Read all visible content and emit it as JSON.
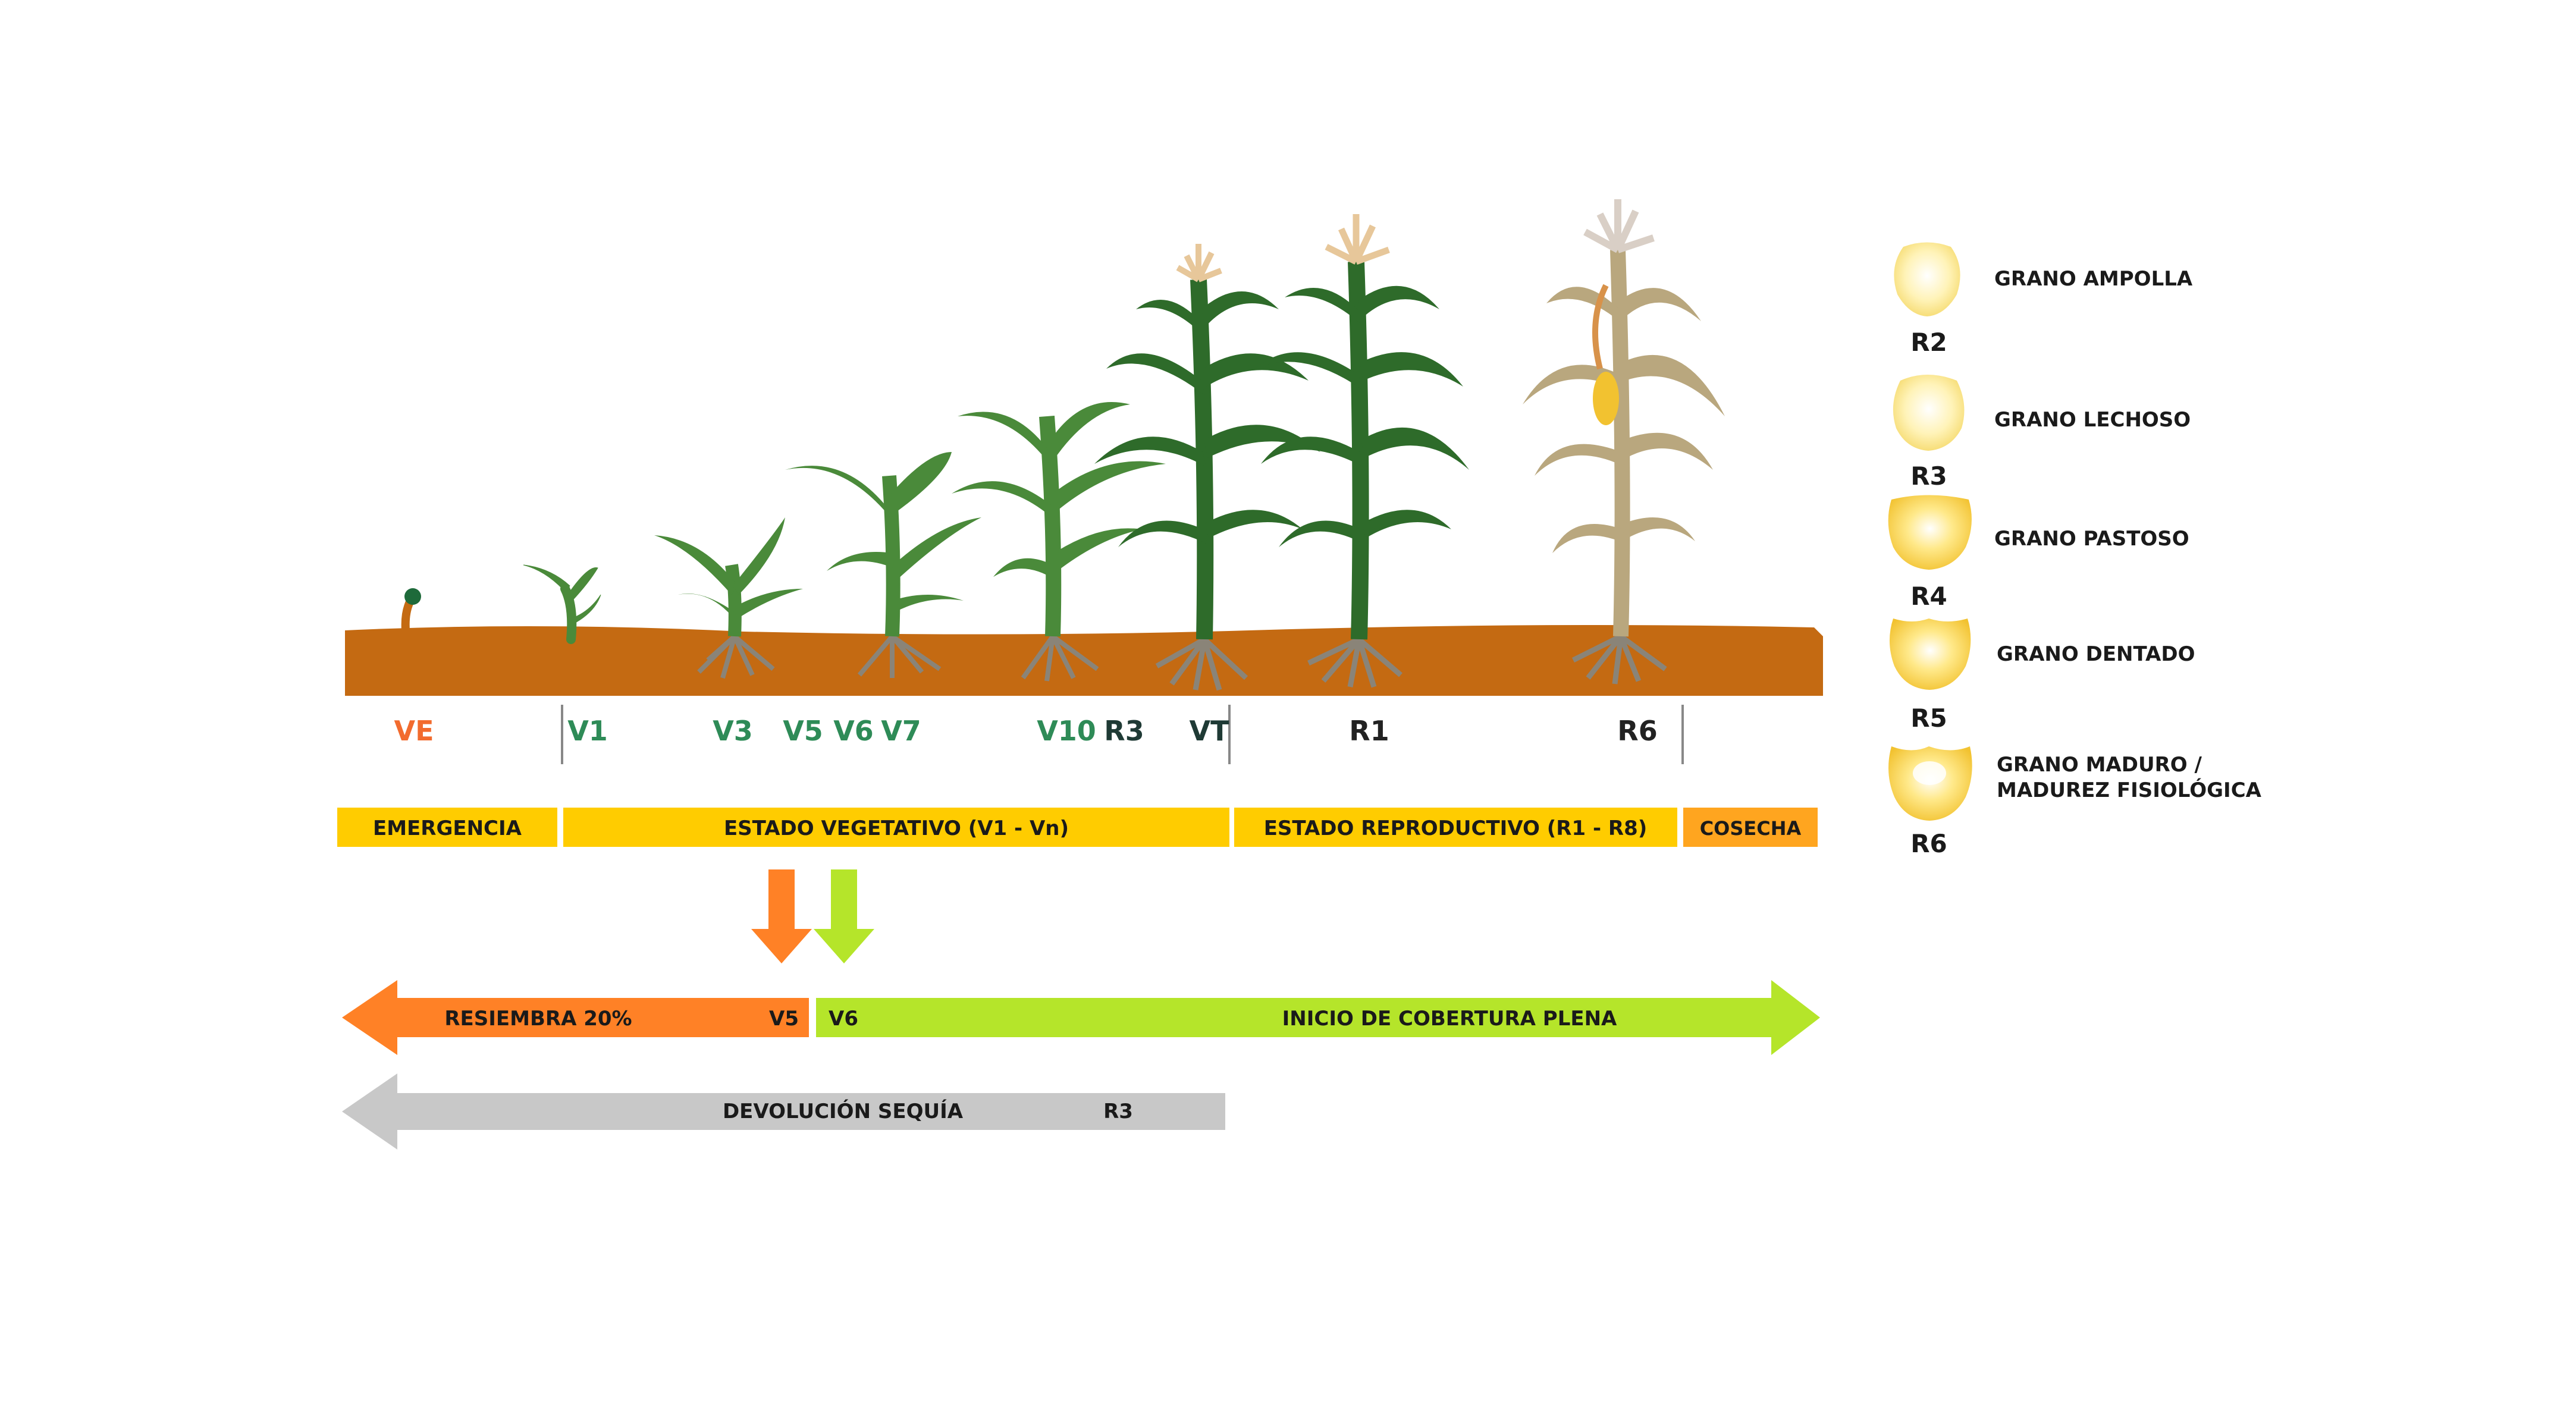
{
  "colors": {
    "soil": "#c46a12",
    "plant_dark": "#2e6b2a",
    "plant_mid": "#4a8a3a",
    "plant_dry": "#b9a77e",
    "root": "#8a8478",
    "tassel": "#e7c79a",
    "stage_orange": "#f26b2e",
    "stage_green": "#2e8b57",
    "stage_dark": "#1f3a35",
    "phase_yellow": "#ffcc00",
    "phase_orange": "#ffa51f",
    "arrow_orange": "#ff8126",
    "arrow_lime": "#b5e52a",
    "arrow_gray": "#c8c8c8",
    "kernel_yellow": "#ffe680"
  },
  "stages": {
    "ve": "VE",
    "v1": "V1",
    "v3": "V3",
    "v5": "V5",
    "v6": "V6",
    "v7": "V7",
    "v10": "V10",
    "r3": "R3",
    "vt": "VT",
    "r1": "R1",
    "r6": "R6"
  },
  "phases": {
    "emergencia": "EMERGENCIA",
    "vegetativo": "ESTADO VEGETATIVO (V1 - Vn)",
    "reproductivo": "ESTADO REPRODUCTIVO (R1 - R8)",
    "cosecha": "COSECHA"
  },
  "arrows": {
    "resiembra_label": "RESIEMBRA 20%",
    "resiembra_end": "V5",
    "cobertura_start": "V6",
    "cobertura_label": "INICIO DE COBERTURA PLENA",
    "sequia_label": "DEVOLUCIÓN SEQUÍA",
    "sequia_end": "R3"
  },
  "kernels": [
    {
      "code": "R2",
      "name": "GRANO AMPOLLA",
      "name2": ""
    },
    {
      "code": "R3",
      "name": "GRANO LECHOSO",
      "name2": ""
    },
    {
      "code": "R4",
      "name": "GRANO PASTOSO",
      "name2": ""
    },
    {
      "code": "R5",
      "name": "GRANO DENTADO",
      "name2": ""
    },
    {
      "code": "R6",
      "name": "GRANO MADURO /",
      "name2": "MADUREZ FISIOLÓGICA"
    }
  ]
}
